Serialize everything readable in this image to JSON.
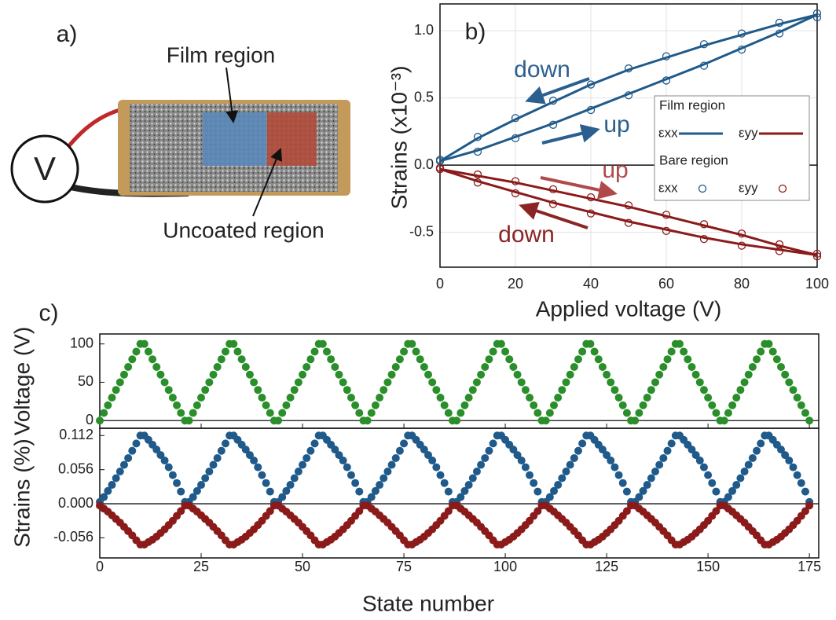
{
  "diagram": {
    "label": "a)",
    "film_label": "Film region",
    "uncoated_label": "Uncoated region",
    "source_label": "V"
  },
  "chart_data": [
    {
      "type": "line",
      "label": "b)",
      "xlabel": "Applied voltage (V)",
      "ylabel": "Strains (x10⁻³)",
      "xlim": [
        0,
        100
      ],
      "xticks": [
        0,
        20,
        40,
        60,
        80,
        100
      ],
      "ylim": [
        -0.76,
        1.2
      ],
      "yticks": [
        {
          "value": -0.5,
          "label": "-0.5"
        },
        {
          "value": 0,
          "label": "0.0"
        },
        {
          "value": 0.5,
          "label": "0.5"
        },
        {
          "value": 1,
          "label": "1.0"
        }
      ],
      "grid": true,
      "x": [
        0,
        10,
        20,
        30,
        40,
        50,
        60,
        70,
        80,
        90,
        100
      ],
      "groups": [
        {
          "name": "Film region",
          "marker": "line",
          "series": [
            {
              "name": "εxx",
              "color": "#1f5a8a",
              "up": [
                0.03,
                0.11,
                0.21,
                0.31,
                0.42,
                0.53,
                0.64,
                0.75,
                0.87,
                0.99,
                1.12
              ],
              "down": [
                0.03,
                0.2,
                0.34,
                0.47,
                0.6,
                0.71,
                0.8,
                0.89,
                0.97,
                1.05,
                1.12
              ]
            },
            {
              "name": "εyy",
              "color": "#8b1a1a",
              "up": [
                -0.03,
                -0.08,
                -0.13,
                -0.19,
                -0.25,
                -0.31,
                -0.38,
                -0.45,
                -0.52,
                -0.6,
                -0.67
              ],
              "down": [
                -0.03,
                -0.12,
                -0.2,
                -0.28,
                -0.35,
                -0.42,
                -0.48,
                -0.54,
                -0.59,
                -0.63,
                -0.67
              ]
            }
          ]
        },
        {
          "name": "Bare region",
          "marker": "circle",
          "series": [
            {
              "name": "εxx",
              "color": "#1f5a8a",
              "up": [
                0.03,
                0.1,
                0.2,
                0.3,
                0.41,
                0.52,
                0.63,
                0.74,
                0.86,
                0.98,
                1.1
              ],
              "down": [
                0.04,
                0.21,
                0.35,
                0.48,
                0.6,
                0.72,
                0.81,
                0.9,
                0.98,
                1.06,
                1.13
              ]
            },
            {
              "name": "εyy",
              "color": "#8b1a1a",
              "up": [
                -0.02,
                -0.07,
                -0.12,
                -0.18,
                -0.24,
                -0.3,
                -0.37,
                -0.44,
                -0.51,
                -0.59,
                -0.66
              ],
              "down": [
                -0.03,
                -0.13,
                -0.21,
                -0.29,
                -0.36,
                -0.43,
                -0.49,
                -0.55,
                -0.6,
                -0.64,
                -0.68
              ]
            }
          ]
        }
      ],
      "annotations": [
        {
          "text": "down",
          "color": "#2b5f8f"
        },
        {
          "text": "up",
          "color": "#2b5f8f"
        },
        {
          "text": "up",
          "color": "#b04a4a"
        },
        {
          "text": "down",
          "color": "#8b2525"
        }
      ]
    },
    {
      "type": "scatter",
      "label": "c)",
      "xlabel": "State number",
      "xlim": [
        0,
        177.3
      ],
      "xticks": [
        0,
        25,
        50,
        75,
        100,
        125,
        150,
        175
      ],
      "x": [
        0,
        1,
        2,
        3,
        4,
        5,
        6,
        7,
        8,
        9,
        10,
        11,
        12,
        13,
        14,
        15,
        16,
        17,
        18,
        19,
        20,
        21,
        22,
        23,
        24,
        25,
        26,
        27,
        28,
        29,
        30,
        31,
        32,
        33,
        34,
        35,
        36,
        37,
        38,
        39,
        40,
        41,
        42,
        43,
        44,
        45,
        46,
        47,
        48,
        49,
        50,
        51,
        52,
        53,
        54,
        55,
        56,
        57,
        58,
        59,
        60,
        61,
        62,
        63,
        64,
        65,
        66,
        67,
        68,
        69,
        70,
        71,
        72,
        73,
        74,
        75,
        76,
        77,
        78,
        79,
        80,
        81,
        82,
        83,
        84,
        85,
        86,
        87,
        88,
        89,
        90,
        91,
        92,
        93,
        94,
        95,
        96,
        97,
        98,
        99,
        100,
        101,
        102,
        103,
        104,
        105,
        106,
        107,
        108,
        109,
        110,
        111,
        112,
        113,
        114,
        115,
        116,
        117,
        118,
        119,
        120,
        121,
        122,
        123,
        124,
        125,
        126,
        127,
        128,
        129,
        130,
        131,
        132,
        133,
        134,
        135,
        136,
        137,
        138,
        139,
        140,
        141,
        142,
        143,
        144,
        145,
        146,
        147,
        148,
        149,
        150,
        151,
        152,
        153,
        154,
        155,
        156,
        157,
        158,
        159,
        160,
        161,
        162,
        163,
        164,
        165,
        166,
        167,
        168,
        169,
        170,
        171,
        172,
        173,
        174,
        175
      ],
      "panels": [
        {
          "ylabel": "Voltage (V)",
          "ylim": [
            -10,
            113
          ],
          "yticks": [
            0,
            50,
            100
          ],
          "series": [
            {
              "color": "#2a8f2a",
              "values": [
                0,
                10,
                20,
                30,
                40,
                50,
                60,
                70,
                80,
                90,
                100,
                100,
                90,
                80,
                70,
                60,
                50,
                40,
                30,
                20,
                10,
                0,
                0,
                10,
                20,
                30,
                40,
                50,
                60,
                70,
                80,
                90,
                100,
                100,
                90,
                80,
                70,
                60,
                50,
                40,
                30,
                20,
                10,
                0,
                0,
                10,
                20,
                30,
                40,
                50,
                60,
                70,
                80,
                90,
                100,
                100,
                90,
                80,
                70,
                60,
                50,
                40,
                30,
                20,
                10,
                0,
                0,
                10,
                20,
                30,
                40,
                50,
                60,
                70,
                80,
                90,
                100,
                100,
                90,
                80,
                70,
                60,
                50,
                40,
                30,
                20,
                10,
                0,
                0,
                10,
                20,
                30,
                40,
                50,
                60,
                70,
                80,
                90,
                100,
                100,
                90,
                80,
                70,
                60,
                50,
                40,
                30,
                20,
                10,
                0,
                0,
                10,
                20,
                30,
                40,
                50,
                60,
                70,
                80,
                90,
                100,
                100,
                90,
                80,
                70,
                60,
                50,
                40,
                30,
                20,
                10,
                0,
                0,
                10,
                20,
                30,
                40,
                50,
                60,
                70,
                80,
                90,
                100,
                100,
                90,
                80,
                70,
                60,
                50,
                40,
                30,
                20,
                10,
                0,
                0,
                10,
                20,
                30,
                40,
                50,
                60,
                70,
                80,
                90,
                100,
                100,
                90,
                80,
                70,
                60,
                50,
                40,
                30,
                20,
                10,
                0
              ]
            }
          ]
        },
        {
          "ylabel": "Strains (%)",
          "ylim": [
            -0.089,
            0.124
          ],
          "yticks": [
            {
              "value": -0.056,
              "label": "-0.056"
            },
            {
              "value": 0,
              "label": "0.000"
            },
            0.056,
            0.112
          ],
          "series": [
            {
              "color": "#1f5a8a",
              "values": [
                0.003,
                0.011,
                0.021,
                0.031,
                0.042,
                0.053,
                0.064,
                0.075,
                0.087,
                0.099,
                0.112,
                0.112,
                0.105,
                0.097,
                0.089,
                0.08,
                0.071,
                0.06,
                0.047,
                0.034,
                0.02,
                0.003,
                0.003,
                0.011,
                0.021,
                0.031,
                0.042,
                0.053,
                0.064,
                0.075,
                0.087,
                0.099,
                0.112,
                0.112,
                0.105,
                0.097,
                0.089,
                0.08,
                0.071,
                0.06,
                0.047,
                0.034,
                0.02,
                0.003,
                0.003,
                0.011,
                0.021,
                0.031,
                0.042,
                0.053,
                0.064,
                0.075,
                0.087,
                0.099,
                0.112,
                0.112,
                0.105,
                0.097,
                0.089,
                0.08,
                0.071,
                0.06,
                0.047,
                0.034,
                0.02,
                0.003,
                0.003,
                0.011,
                0.021,
                0.031,
                0.042,
                0.053,
                0.064,
                0.075,
                0.087,
                0.099,
                0.112,
                0.112,
                0.105,
                0.097,
                0.089,
                0.08,
                0.071,
                0.06,
                0.047,
                0.034,
                0.02,
                0.003,
                0.003,
                0.011,
                0.021,
                0.031,
                0.042,
                0.053,
                0.064,
                0.075,
                0.087,
                0.099,
                0.112,
                0.112,
                0.105,
                0.097,
                0.089,
                0.08,
                0.071,
                0.06,
                0.047,
                0.034,
                0.02,
                0.003,
                0.003,
                0.011,
                0.021,
                0.031,
                0.042,
                0.053,
                0.064,
                0.075,
                0.087,
                0.099,
                0.112,
                0.112,
                0.105,
                0.097,
                0.089,
                0.08,
                0.071,
                0.06,
                0.047,
                0.034,
                0.02,
                0.003,
                0.003,
                0.011,
                0.021,
                0.031,
                0.042,
                0.053,
                0.064,
                0.075,
                0.087,
                0.099,
                0.112,
                0.112,
                0.105,
                0.097,
                0.089,
                0.08,
                0.071,
                0.06,
                0.047,
                0.034,
                0.02,
                0.003,
                0.003,
                0.011,
                0.021,
                0.031,
                0.042,
                0.053,
                0.064,
                0.075,
                0.087,
                0.099,
                0.112,
                0.112,
                0.105,
                0.097,
                0.089,
                0.08,
                0.071,
                0.06,
                0.047,
                0.034,
                0.02,
                0.003
              ]
            },
            {
              "color": "#8b1a1a",
              "values": [
                -0.003,
                -0.008,
                -0.013,
                -0.019,
                -0.025,
                -0.031,
                -0.038,
                -0.045,
                -0.052,
                -0.06,
                -0.067,
                -0.067,
                -0.063,
                -0.059,
                -0.054,
                -0.048,
                -0.042,
                -0.035,
                -0.028,
                -0.02,
                -0.012,
                -0.003,
                -0.003,
                -0.008,
                -0.013,
                -0.019,
                -0.025,
                -0.031,
                -0.038,
                -0.045,
                -0.052,
                -0.06,
                -0.067,
                -0.067,
                -0.063,
                -0.059,
                -0.054,
                -0.048,
                -0.042,
                -0.035,
                -0.028,
                -0.02,
                -0.012,
                -0.003,
                -0.003,
                -0.008,
                -0.013,
                -0.019,
                -0.025,
                -0.031,
                -0.038,
                -0.045,
                -0.052,
                -0.06,
                -0.067,
                -0.067,
                -0.063,
                -0.059,
                -0.054,
                -0.048,
                -0.042,
                -0.035,
                -0.028,
                -0.02,
                -0.012,
                -0.003,
                -0.003,
                -0.008,
                -0.013,
                -0.019,
                -0.025,
                -0.031,
                -0.038,
                -0.045,
                -0.052,
                -0.06,
                -0.067,
                -0.067,
                -0.063,
                -0.059,
                -0.054,
                -0.048,
                -0.042,
                -0.035,
                -0.028,
                -0.02,
                -0.012,
                -0.003,
                -0.003,
                -0.008,
                -0.013,
                -0.019,
                -0.025,
                -0.031,
                -0.038,
                -0.045,
                -0.052,
                -0.06,
                -0.067,
                -0.067,
                -0.063,
                -0.059,
                -0.054,
                -0.048,
                -0.042,
                -0.035,
                -0.028,
                -0.02,
                -0.012,
                -0.003,
                -0.003,
                -0.008,
                -0.013,
                -0.019,
                -0.025,
                -0.031,
                -0.038,
                -0.045,
                -0.052,
                -0.06,
                -0.067,
                -0.067,
                -0.063,
                -0.059,
                -0.054,
                -0.048,
                -0.042,
                -0.035,
                -0.028,
                -0.02,
                -0.012,
                -0.003,
                -0.003,
                -0.008,
                -0.013,
                -0.019,
                -0.025,
                -0.031,
                -0.038,
                -0.045,
                -0.052,
                -0.06,
                -0.067,
                -0.067,
                -0.063,
                -0.059,
                -0.054,
                -0.048,
                -0.042,
                -0.035,
                -0.028,
                -0.02,
                -0.012,
                -0.003,
                -0.003,
                -0.008,
                -0.013,
                -0.019,
                -0.025,
                -0.031,
                -0.038,
                -0.045,
                -0.052,
                -0.06,
                -0.067,
                -0.067,
                -0.063,
                -0.059,
                -0.054,
                -0.048,
                -0.042,
                -0.035,
                -0.028,
                -0.02,
                -0.012,
                -0.003
              ]
            }
          ]
        }
      ]
    }
  ]
}
